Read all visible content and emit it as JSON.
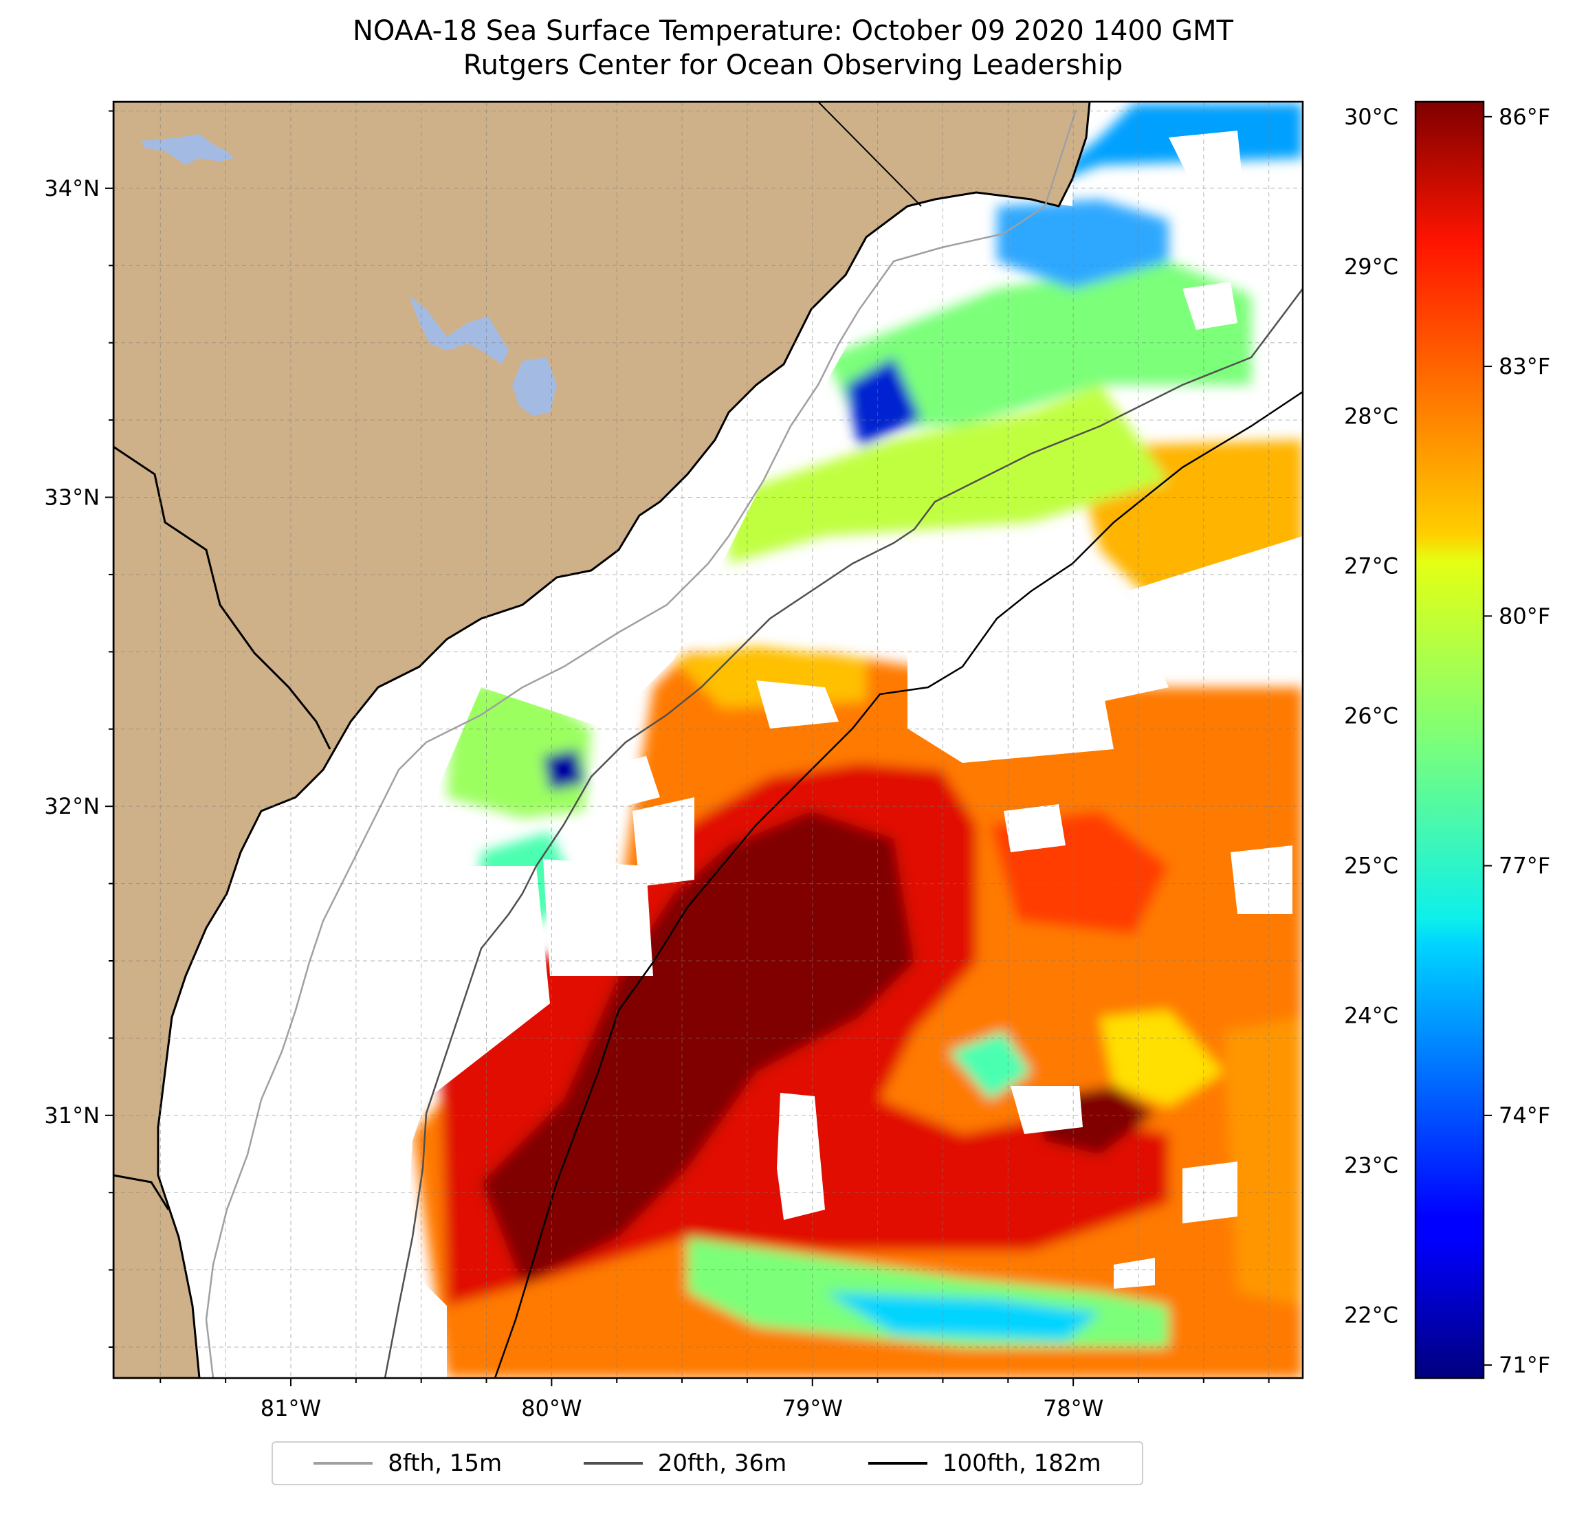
{
  "title": {
    "line1": "NOAA-18 Sea Surface Temperature: October 09 2020 1400 GMT",
    "line2": "Rutgers Center for Ocean Observing Leadership"
  },
  "map": {
    "extent": {
      "lon_min": -81.68,
      "lon_max": -77.12,
      "lat_min": 30.15,
      "lat_max": 34.28
    },
    "lat_labels": [
      {
        "value": 34,
        "label": "34°N"
      },
      {
        "value": 33,
        "label": "33°N"
      },
      {
        "value": 32,
        "label": "32°N"
      },
      {
        "value": 31,
        "label": "31°N"
      }
    ],
    "lon_labels": [
      {
        "value": -81,
        "label": "81°W"
      },
      {
        "value": -80,
        "label": "80°W"
      },
      {
        "value": -79,
        "label": "79°W"
      },
      {
        "value": -78,
        "label": "78°W"
      }
    ],
    "gridlines": "dashed, every 0.25°",
    "colors": {
      "land": "#cfb189",
      "lakes": "#a3bbe3",
      "no_data": "#ffffff"
    }
  },
  "colorbar": {
    "colormap": "jet",
    "celsius_ticks": [
      "30°C",
      "29°C",
      "28°C",
      "27°C",
      "26°C",
      "25°C",
      "24°C",
      "23°C",
      "22°C"
    ],
    "fahrenheit_ticks": [
      "86°F",
      "83°F",
      "80°F",
      "77°F",
      "74°F",
      "71°F"
    ]
  },
  "legend": {
    "items": [
      {
        "label": "8fth, 15m",
        "color": "#a0a0a0"
      },
      {
        "label": "20fth, 36m",
        "color": "#505050"
      },
      {
        "label": "100fth, 182m",
        "color": "#000000"
      }
    ]
  }
}
